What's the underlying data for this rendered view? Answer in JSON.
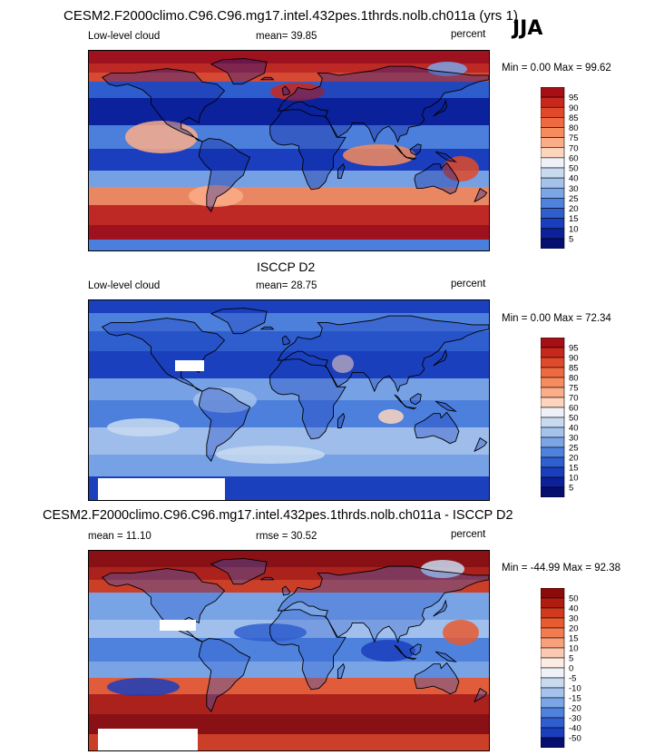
{
  "header": {
    "run_title": "CESM2.F2000climo.C96.C96.mg17.intel.432pes.1thrds.nolb.ch011a (yrs 1)",
    "season": "JJA"
  },
  "chart_data": [
    {
      "type": "heatmap",
      "panel": "model",
      "variable": "Low-level cloud",
      "units": "percent",
      "mean_label": "mean=  39.85",
      "minmax_label": "Min =   0.00 Max =  99.62",
      "min": 0.0,
      "max": 99.62,
      "mean": 39.85,
      "levels": [
        "95",
        "90",
        "85",
        "80",
        "75",
        "70",
        "60",
        "50",
        "40",
        "30",
        "25",
        "20",
        "15",
        "10",
        "5"
      ],
      "colors": [
        "#a50f15",
        "#c8281c",
        "#e04a2a",
        "#ee6a40",
        "#f68b5e",
        "#fbad88",
        "#fdd5bd",
        "#eef2f8",
        "#c8daf0",
        "#a4c2ec",
        "#7aa5e6",
        "#4f82dc",
        "#2f5fcf",
        "#1a3ebd",
        "#0c209a",
        "#060e70"
      ]
    },
    {
      "type": "heatmap",
      "panel": "observations",
      "title": "ISCCP D2",
      "variable": "Low-level cloud",
      "units": "percent",
      "mean_label": "mean=  28.75",
      "minmax_label": "Min =   0.00 Max =  72.34",
      "min": 0.0,
      "max": 72.34,
      "mean": 28.75,
      "levels": [
        "95",
        "90",
        "85",
        "80",
        "75",
        "70",
        "60",
        "50",
        "40",
        "30",
        "25",
        "20",
        "15",
        "10",
        "5"
      ],
      "colors": [
        "#a50f15",
        "#c8281c",
        "#e04a2a",
        "#ee6a40",
        "#f68b5e",
        "#fbad88",
        "#fdd5bd",
        "#eef2f8",
        "#c8daf0",
        "#a4c2ec",
        "#7aa5e6",
        "#4f82dc",
        "#2f5fcf",
        "#1a3ebd",
        "#0c209a",
        "#060e70"
      ]
    },
    {
      "type": "heatmap",
      "panel": "difference",
      "title": "CESM2.F2000climo.C96.C96.mg17.intel.432pes.1thrds.nolb.ch011a - ISCCP D2",
      "units": "percent",
      "mean_label": "mean =  11.10",
      "rmse_label": "rmse =  30.52",
      "minmax_label": "Min = -44.99 Max =  92.38",
      "min": -44.99,
      "max": 92.38,
      "mean": 11.1,
      "rmse": 30.52,
      "levels": [
        "50",
        "40",
        "30",
        "20",
        "15",
        "10",
        "5",
        "0",
        "-5",
        "-10",
        "-15",
        "-20",
        "-30",
        "-40",
        "-50"
      ],
      "colors": [
        "#8c0a0a",
        "#b01c12",
        "#d23a1e",
        "#e85a30",
        "#f27c50",
        "#f8a07c",
        "#fcc8b0",
        "#fdece4",
        "#eef2f8",
        "#c8daf0",
        "#a4c2ec",
        "#7aa5e6",
        "#4f82dc",
        "#2f5fcf",
        "#1a3ebd",
        "#060e70"
      ]
    }
  ]
}
